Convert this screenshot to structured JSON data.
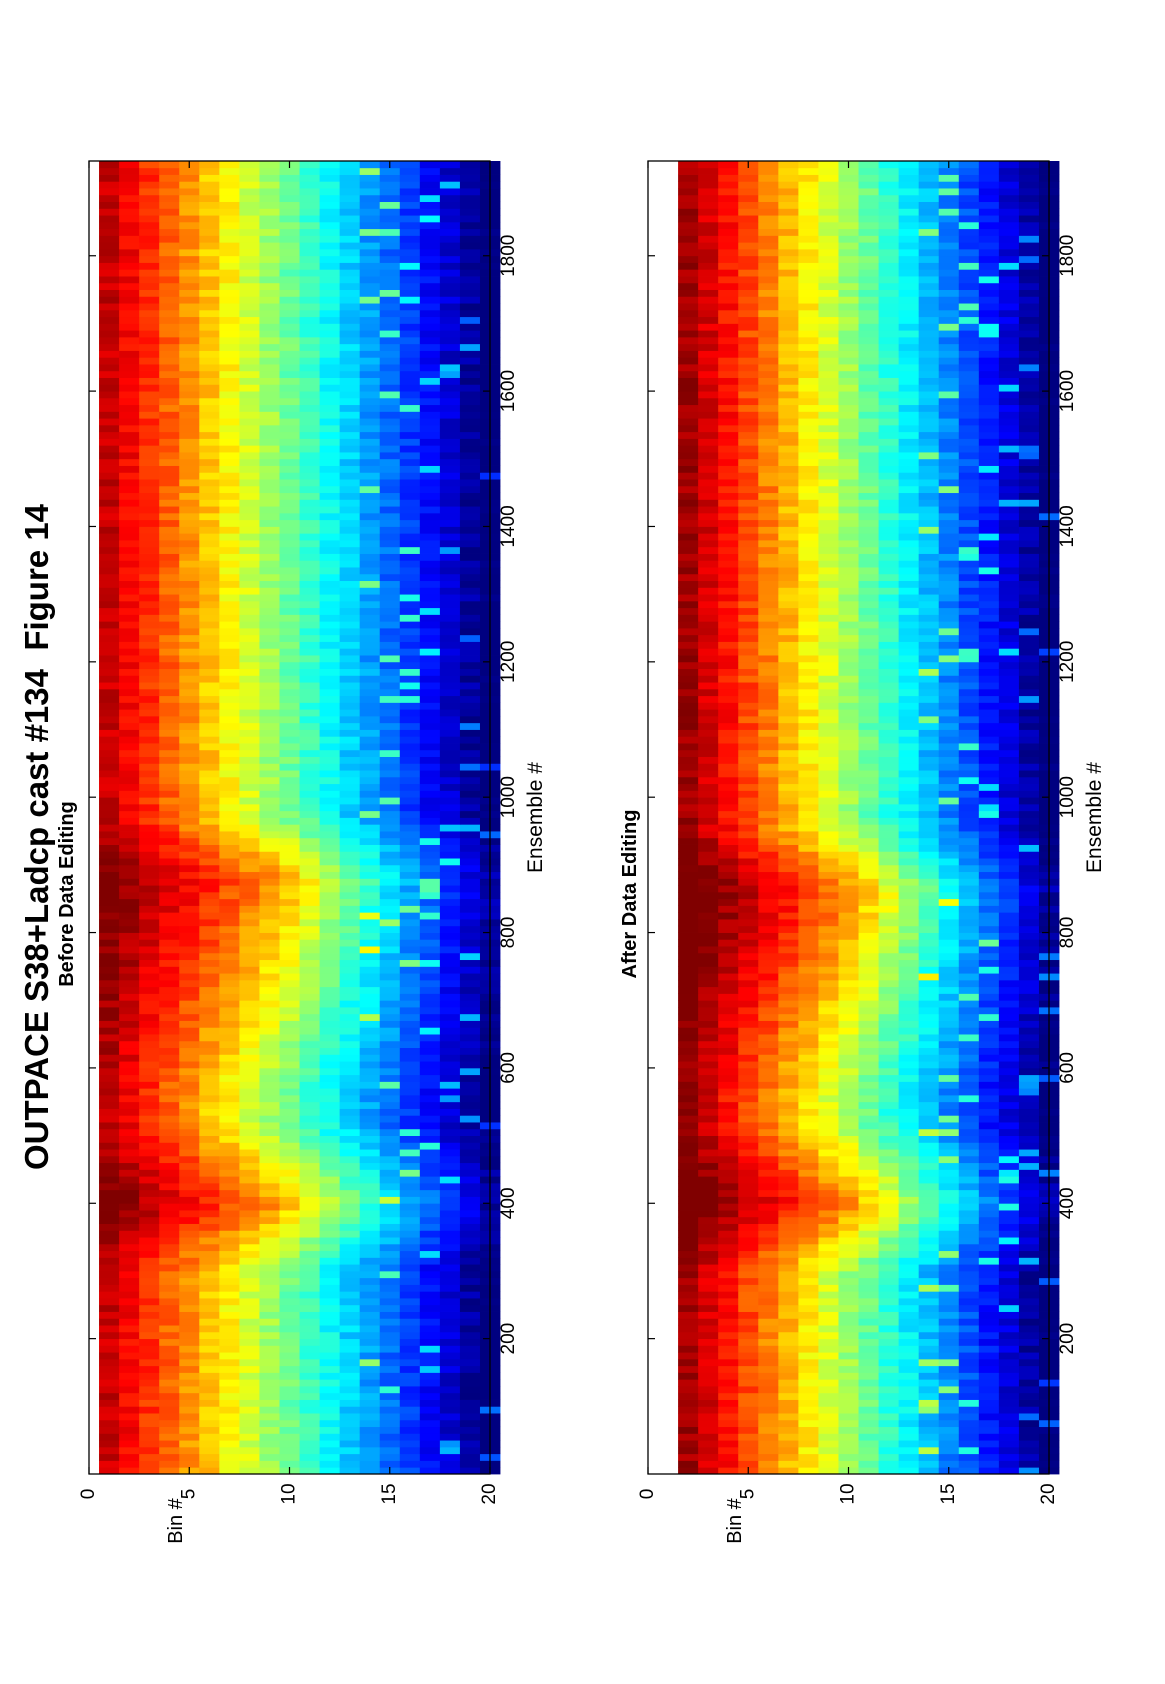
{
  "figure": {
    "title": "OUTPACE S38+Ladcp cast #134  Figure 14"
  },
  "chart_data": [
    {
      "type": "heatmap",
      "title": "Before Data Editing",
      "xlabel": "Ensemble #",
      "ylabel": "Bin #",
      "xlim": [
        0,
        1940
      ],
      "ylim": [
        0,
        20
      ],
      "xticks": [
        "200",
        "400",
        "600",
        "800",
        "1000",
        "1200",
        "1400",
        "1600",
        "1800"
      ],
      "yticks": [
        "0",
        "5",
        "10",
        "15",
        "20"
      ],
      "colormap": "jet",
      "bins": [
        1,
        20
      ],
      "ensembles": [
        0,
        1940
      ],
      "bin_column_colors": [
        "#e31a1c",
        "#ff6a00",
        "#ffb000",
        "#ffe100",
        "#d8ff2a",
        "#7dff7b",
        "#25f4ff",
        "#00b4ff",
        "#0060ff",
        "#0022ff",
        "#0010d8",
        "#000ab8",
        "#000aa6"
      ],
      "features": [
        {
          "name": "profile lightening",
          "ensemble_start": 300,
          "ensemble_peak": 400,
          "ensemble_end": 520
        },
        {
          "name": "profile lightening",
          "ensemble_start": 560,
          "ensemble_peak": 880,
          "ensemble_end": 975
        }
      ]
    },
    {
      "type": "heatmap",
      "title": "After Data Editing",
      "xlabel": "Ensemble #",
      "ylabel": "Bin #",
      "xlim": [
        0,
        1940
      ],
      "ylim": [
        0,
        20
      ],
      "xticks": [
        "200",
        "400",
        "600",
        "800",
        "1000",
        "1200",
        "1400",
        "1600",
        "1800"
      ],
      "yticks": [
        "0",
        "5",
        "10",
        "15",
        "20"
      ],
      "colormap": "jet",
      "bins": [
        2,
        20
      ],
      "ensembles": [
        0,
        1940
      ],
      "bin_column_colors": [
        "#c81010",
        "#ff3000",
        "#ff8c00",
        "#ffd000",
        "#e8ff18",
        "#8cff72",
        "#28f0ff",
        "#00a8ff",
        "#0058ff",
        "#0020ff",
        "#0010d4",
        "#000ab6",
        "#000aa6"
      ],
      "features": [
        {
          "name": "profile lightening",
          "ensemble_start": 300,
          "ensemble_peak": 400,
          "ensemble_end": 520
        },
        {
          "name": "profile lightening",
          "ensemble_start": 560,
          "ensemble_peak": 860,
          "ensemble_end": 960
        }
      ]
    }
  ]
}
